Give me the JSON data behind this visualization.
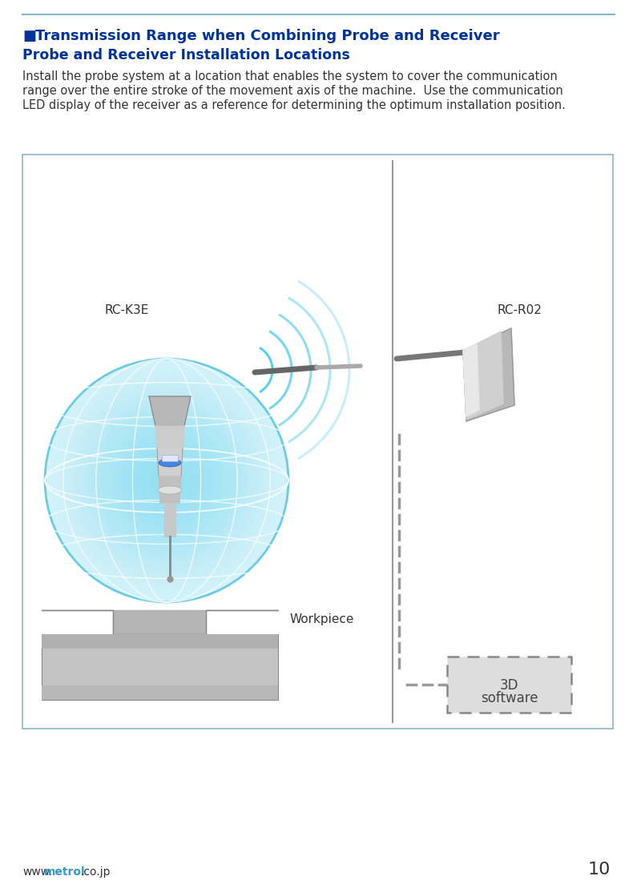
{
  "title_bullet": "■",
  "title_main": "Transmission Range when Combining Probe and Receiver",
  "title_line2": "Probe and Receiver Installation Locations",
  "body_line1": "Install the probe system at a location that enables the system to cover the communication",
  "body_line2": "range over the entire stroke of the movement axis of the machine.  Use the communication",
  "body_line3": "LED display of the receiver as a reference for determining the optimum installation position.",
  "label_rck3e": "RC-K3E",
  "label_rcr02": "RC-R02",
  "label_workpiece": "Workpiece",
  "label_3d_line1": "3D",
  "label_3d_line2": "software",
  "page_number": "10",
  "footer_www": "www.",
  "footer_metrol": "metrol",
  "footer_cojp": ".co.jp",
  "title_color": "#003399",
  "subtitle_color": "#003399",
  "body_color": "#333333",
  "box_border_color": "#8ab4cc",
  "top_line_color": "#8ab4cc",
  "dashed_line_color": "#999999",
  "wall_line_color": "#999999",
  "globe_color_center": "#7fd8f0",
  "signal_color": "#55ccee",
  "bg_color": "#ffffff",
  "box_fill_color": "#ffffff",
  "software_box_color": "#dddddd",
  "metrol_color": "#3399cc"
}
